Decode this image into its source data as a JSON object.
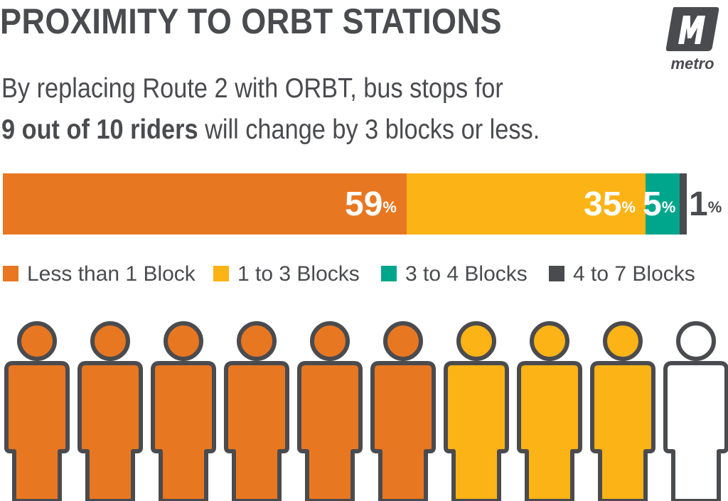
{
  "title": "PROXIMITY TO ORBT STATIONS",
  "logo": {
    "word": "metro",
    "mark_icon": "metro-m-logo-icon"
  },
  "subtitle": {
    "line1": "By replacing Route 2 with ORBT, bus stops for",
    "line2_bold": "9 out of 10 riders",
    "line2_rest": " will change by 3 blocks or less."
  },
  "chart_data": {
    "type": "bar",
    "orientation": "horizontal-stacked",
    "categories": [
      "Less than 1 Block",
      "1 to 3 Blocks",
      "3 to 4 Blocks",
      "4 to 7 Blocks"
    ],
    "values": [
      59,
      35,
      5,
      1
    ],
    "unit": "%",
    "labels": [
      {
        "num": "59",
        "pct": "%"
      },
      {
        "num": "35",
        "pct": "%"
      },
      {
        "num": "5",
        "pct": "%"
      },
      {
        "num": "1",
        "pct": "%"
      }
    ],
    "colors": [
      "#e87722",
      "#fbb316",
      "#00a68c",
      "#4a4b4f"
    ],
    "legend_placement": "bottom",
    "pictogram": {
      "people": 10,
      "counts": [
        6,
        3,
        0,
        1
      ],
      "fill_colors": [
        "#e87722",
        "#fbb316",
        "#00a68c",
        "#ffffff"
      ]
    }
  }
}
